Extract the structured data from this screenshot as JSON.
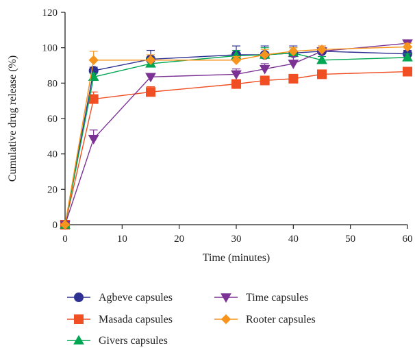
{
  "chart_data": {
    "type": "line",
    "title": "",
    "xlabel": "Time (minutes)",
    "ylabel": "Cumulative drug release (%)",
    "xlim": [
      0,
      60
    ],
    "ylim": [
      0,
      120
    ],
    "xticks": [
      0,
      10,
      20,
      30,
      40,
      50,
      60
    ],
    "yticks": [
      0,
      20,
      40,
      60,
      80,
      100,
      120
    ],
    "grid": false,
    "legend": "bottom",
    "series": [
      {
        "name": "Agbeve capsules",
        "color": "#2e3192",
        "marker": "circle",
        "x": [
          0,
          5,
          15,
          30,
          35,
          40,
          45,
          60
        ],
        "y": [
          0,
          87,
          93.5,
          96,
          96,
          97,
          98,
          96.5
        ],
        "err": [
          0,
          2,
          5,
          5,
          5,
          4,
          2,
          2
        ]
      },
      {
        "name": "Masada capsules",
        "color": "#f04e23",
        "marker": "square",
        "x": [
          0,
          5,
          15,
          30,
          35,
          40,
          45,
          60
        ],
        "y": [
          0,
          71,
          75,
          79.5,
          81.5,
          82.5,
          85,
          86.5
        ],
        "err": [
          0,
          4,
          3,
          2,
          2,
          2,
          2,
          2
        ]
      },
      {
        "name": "Givers capsules",
        "color": "#00a651",
        "marker": "triangle-up",
        "x": [
          0,
          5,
          15,
          30,
          35,
          40,
          45,
          60
        ],
        "y": [
          0,
          83.5,
          91,
          95.5,
          96,
          97,
          93,
          94.5
        ],
        "err": [
          0,
          2,
          3,
          3,
          4,
          3,
          2,
          2
        ]
      },
      {
        "name": "Time capsules",
        "color": "#7b3294",
        "marker": "triangle-down",
        "x": [
          0,
          5,
          15,
          30,
          35,
          40,
          45,
          60
        ],
        "y": [
          0,
          48.5,
          83.5,
          85,
          88,
          91,
          98,
          102.5
        ],
        "err": [
          0,
          5,
          2,
          3,
          3,
          4,
          3,
          2
        ]
      },
      {
        "name": "Rooter capsules",
        "color": "#f7941d",
        "marker": "diamond",
        "x": [
          0,
          5,
          15,
          30,
          35,
          40,
          45,
          60
        ],
        "y": [
          0,
          93,
          93,
          93,
          96,
          98,
          99,
          100.5
        ],
        "err": [
          0,
          5,
          3,
          2,
          3,
          2,
          2,
          2
        ]
      }
    ]
  }
}
